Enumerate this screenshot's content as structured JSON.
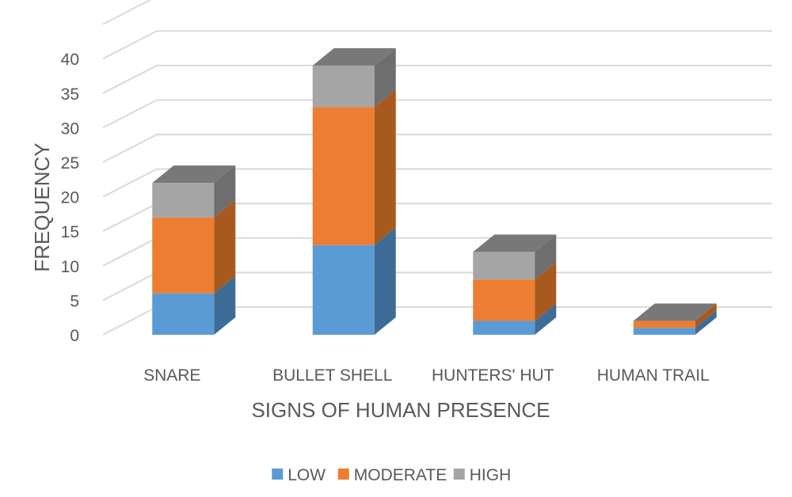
{
  "chart_data": {
    "type": "bar",
    "stacked": true,
    "style": "3d-column",
    "title": "",
    "xlabel": "SIGNS OF HUMAN PRESENCE",
    "ylabel": "FREQUENCY",
    "categories": [
      "SNARE",
      "BULLET SHELL",
      "HUNTERS' HUT",
      "HUMAN TRAIL"
    ],
    "series": [
      {
        "name": "LOW",
        "values": [
          6,
          13,
          2,
          1
        ],
        "color": "#5B9BD5",
        "side_color": "#3E6C97"
      },
      {
        "name": "MODERATE",
        "values": [
          11,
          20,
          6,
          1
        ],
        "color": "#ED7D31",
        "side_color": "#A8591E"
      },
      {
        "name": "HIGH",
        "values": [
          5,
          6,
          4,
          0
        ],
        "color": "#A5A5A5",
        "side_color": "#6E6E6E"
      }
    ],
    "y_ticks": [
      "0",
      "5",
      "10",
      "15",
      "20",
      "25",
      "30",
      "35",
      "40"
    ],
    "ylim": [
      0,
      45
    ],
    "grid": true,
    "legend_position": "bottom",
    "gridline_color": "#D9D9D9",
    "text_color": "#595959"
  }
}
